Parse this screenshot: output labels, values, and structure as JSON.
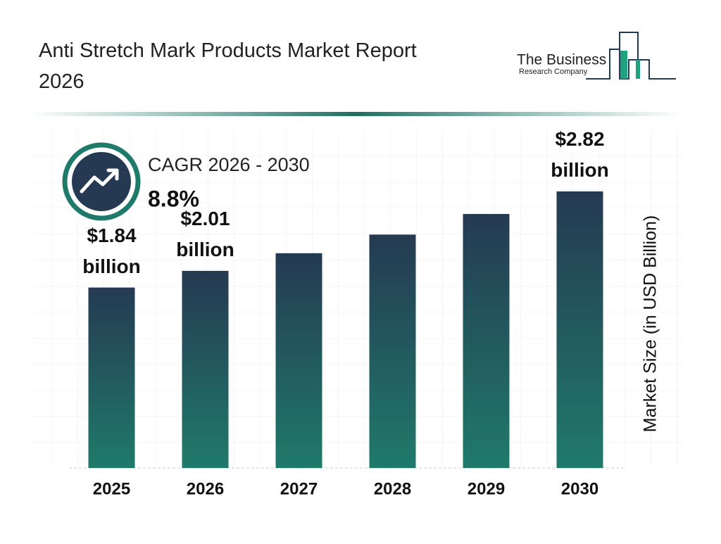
{
  "chart_data": {
    "type": "bar",
    "title": "Anti Stretch Mark Products Market Report 2026",
    "y_label": "Market Size (in USD Billion)",
    "cagr_label": "CAGR 2026 - 2030",
    "cagr_value": "8.8%",
    "categories": [
      "2025",
      "2026",
      "2027",
      "2028",
      "2029",
      "2030"
    ],
    "values": [
      1.84,
      2.01,
      2.19,
      2.38,
      2.59,
      2.82
    ],
    "value_labels": [
      "$1.84 billion",
      "$2.01 billion",
      null,
      null,
      null,
      "$2.82 billion"
    ],
    "color": [
      "#253a52",
      "#1f7a6a"
    ]
  },
  "logo": {
    "line1": "The Business",
    "line2": "Research Company"
  }
}
